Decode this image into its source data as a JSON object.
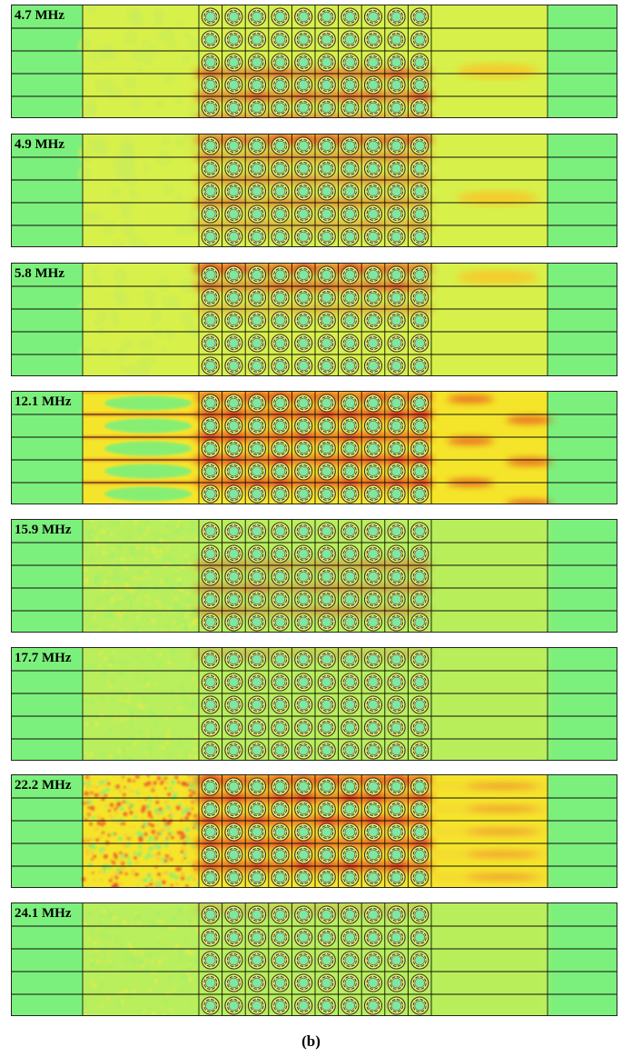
{
  "panels": [
    {
      "label": "4.7 MHz",
      "pattern": "low",
      "hot": [
        [
          3,
          0.8
        ],
        [
          4,
          0.9
        ],
        [
          5,
          0.6
        ]
      ],
      "outlet": "single"
    },
    {
      "label": "4.9 MHz",
      "pattern": "low",
      "hot": [
        [
          0,
          0.9
        ],
        [
          1,
          0.5
        ],
        [
          2,
          0.5
        ],
        [
          3,
          0.5
        ],
        [
          4,
          0.4
        ]
      ],
      "outlet": "single"
    },
    {
      "label": "5.8 MHz",
      "pattern": "low",
      "hot": [
        [
          0,
          1.0
        ],
        [
          1,
          0.8
        ],
        [
          2,
          0.3
        ]
      ],
      "outlet": "single"
    },
    {
      "label": "12.1 MHz",
      "pattern": "mid",
      "hot": [
        [
          0,
          1.0
        ],
        [
          1,
          1.0
        ],
        [
          2,
          1.0
        ],
        [
          3,
          1.0
        ],
        [
          4,
          1.0
        ]
      ],
      "outlet": "bands"
    },
    {
      "label": "15.9 MHz",
      "pattern": "speckle",
      "hot": [
        [
          2,
          0.4
        ],
        [
          3,
          0.5
        ],
        [
          4,
          0.4
        ]
      ],
      "outlet": "faint"
    },
    {
      "label": "17.7 MHz",
      "pattern": "speckle-light",
      "hot": [
        [
          0,
          0.2
        ]
      ],
      "outlet": "faint"
    },
    {
      "label": "22.2 MHz",
      "pattern": "dense",
      "hot": [
        [
          0,
          1.0
        ],
        [
          1,
          1.0
        ],
        [
          2,
          1.0
        ],
        [
          3,
          1.0
        ],
        [
          4,
          1.0
        ]
      ],
      "outlet": "streaks"
    },
    {
      "label": "24.1 MHz",
      "pattern": "speckle-light",
      "hot": [
        [
          0,
          0.2
        ]
      ],
      "outlet": "faint"
    }
  ],
  "caption": "(b)",
  "colors": {
    "background": "#7cf07c",
    "field_low": "#d8f04a",
    "field_mid": "#f5e52a",
    "field_hot": "#e8281e",
    "cell_ring": "#333333"
  },
  "lattice": {
    "columns": 10,
    "rows": 5
  }
}
